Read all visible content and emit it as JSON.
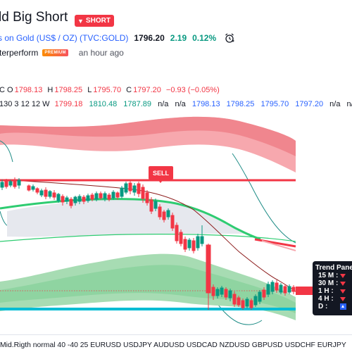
{
  "idea": {
    "title": "ld Big Short",
    "badge": "SHORT",
    "symbol": "s on Gold (US$ / OZ) (TVC:GOLD)",
    "price": "1796.20",
    "change": "2.19",
    "change_pct": "0.12%",
    "author": "terperform",
    "author_badge": "PREMIUM",
    "posted": "an hour ago"
  },
  "legend_ohlc": {
    "prefix": "C",
    "o_label": "O",
    "o": "1798.13",
    "h_label": "H",
    "h": "1798.25",
    "l_label": "L",
    "l": "1795.70",
    "c_label": "C",
    "c": "1797.20",
    "chg": "−0.93 (−0.05%)"
  },
  "legend_indicator": {
    "params": "130 3 12 12 W",
    "v1": "1799.18",
    "v2": "1810.48",
    "v3": "1787.89",
    "na1": "n/a",
    "na2": "n/a",
    "v4": "1798.13",
    "v5": "1798.25",
    "v6": "1795.70",
    "v7": "1797.20",
    "na3": "n/a",
    "na4": "n/"
  },
  "sell_label": "SELL",
  "trend_panel": {
    "title": "Trend Panel",
    "rows": [
      {
        "label": "15 M :",
        "state": "down"
      },
      {
        "label": "30 M :",
        "state": "down"
      },
      {
        "label": "1 H :",
        "state": "down"
      },
      {
        "label": "4 H :",
        "state": "down"
      },
      {
        "label": "D :",
        "state": "up"
      }
    ]
  },
  "footer": "Mid.Rigth normal 40 -40 25 EURUSD USDJPY AUDUSD USDCAD NZDUSD GBPUSD USDCHF EURJPY",
  "colors": {
    "bear": "#f23645",
    "bull": "#089981",
    "accent": "#2962ff",
    "cyan_line": "#00bcd4",
    "green_ma": "#2ecc71"
  },
  "icons": {
    "alarm": "alarm-clock-icon",
    "arrow_down": "arrow-down-icon"
  }
}
